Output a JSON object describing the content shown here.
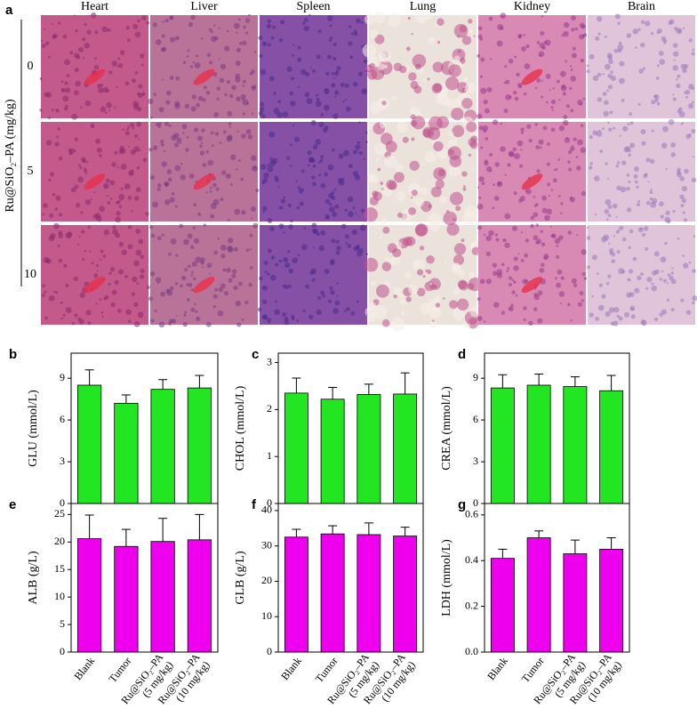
{
  "panel_a": {
    "label": "a",
    "organs": [
      "Heart",
      "Liver",
      "Spleen",
      "Lung",
      "Kidney",
      "Brain"
    ],
    "doses": [
      "0",
      "5",
      "10"
    ],
    "dose_axis_label": "Ru@SiO₂–PA (mg/kg)"
  },
  "chart_data": [
    {
      "type": "bar",
      "label": "b",
      "y_label": "GLU (mmol/L)",
      "values": [
        8.5,
        7.2,
        8.2,
        8.3
      ],
      "errors": [
        1.1,
        0.6,
        0.7,
        0.9
      ],
      "color": "#22e622",
      "ylim": [
        0,
        10.8
      ],
      "yticks": [
        0,
        3,
        6,
        9
      ]
    },
    {
      "type": "bar",
      "label": "c",
      "y_label": "CHOL (mmol/L)",
      "values": [
        2.35,
        2.22,
        2.32,
        2.33
      ],
      "errors": [
        0.32,
        0.25,
        0.22,
        0.45
      ],
      "color": "#22e622",
      "ylim": [
        0,
        3.2
      ],
      "yticks": [
        0,
        1,
        2,
        3
      ]
    },
    {
      "type": "bar",
      "label": "d",
      "y_label": "CREA (mmol/L)",
      "values": [
        8.3,
        8.5,
        8.4,
        8.1
      ],
      "errors": [
        0.95,
        0.8,
        0.7,
        1.1
      ],
      "color": "#22e622",
      "ylim": [
        0,
        10.8
      ],
      "yticks": [
        0,
        3,
        6,
        9
      ]
    },
    {
      "type": "bar",
      "label": "e",
      "y_label": "ALB (g/L)",
      "categories": [
        "Blank",
        "Tumor",
        "Ru@SiO₂–PA\n(5 mg/kg)",
        "Ru@SiO₂–PA\n(10 mg/kg)"
      ],
      "values": [
        20.6,
        19.2,
        20.1,
        20.4
      ],
      "errors": [
        4.3,
        3.1,
        4.2,
        4.6
      ],
      "color": "#ee00ee",
      "ylim": [
        0,
        27
      ],
      "yticks": [
        0,
        5,
        10,
        15,
        20,
        25
      ]
    },
    {
      "type": "bar",
      "label": "f",
      "y_label": "GLB (g/L)",
      "categories": [
        "Blank",
        "Tumor",
        "Ru@SiO₂–PA\n(5 mg/kg)",
        "Ru@SiO₂–PA\n(10 mg/kg)"
      ],
      "values": [
        32.5,
        33.4,
        33.2,
        32.8
      ],
      "errors": [
        2.2,
        2.3,
        3.3,
        2.5
      ],
      "color": "#ee00ee",
      "ylim": [
        0,
        42
      ],
      "yticks": [
        0,
        10,
        20,
        30,
        40
      ]
    },
    {
      "type": "bar",
      "label": "g",
      "y_label": "LDH (mmol/L)",
      "categories": [
        "Blank",
        "Tumor",
        "Ru@SiO₂–PA\n(5 mg/kg)",
        "Ru@SiO₂–PA\n(10 mg/kg)"
      ],
      "values": [
        0.41,
        0.5,
        0.43,
        0.45
      ],
      "errors": [
        0.04,
        0.03,
        0.06,
        0.05
      ],
      "color": "#ee00ee",
      "ylim": [
        0,
        0.65
      ],
      "yticks": [
        {
          "value": 0,
          "label": "0.0"
        },
        0.2,
        0.4,
        0.6
      ]
    }
  ]
}
